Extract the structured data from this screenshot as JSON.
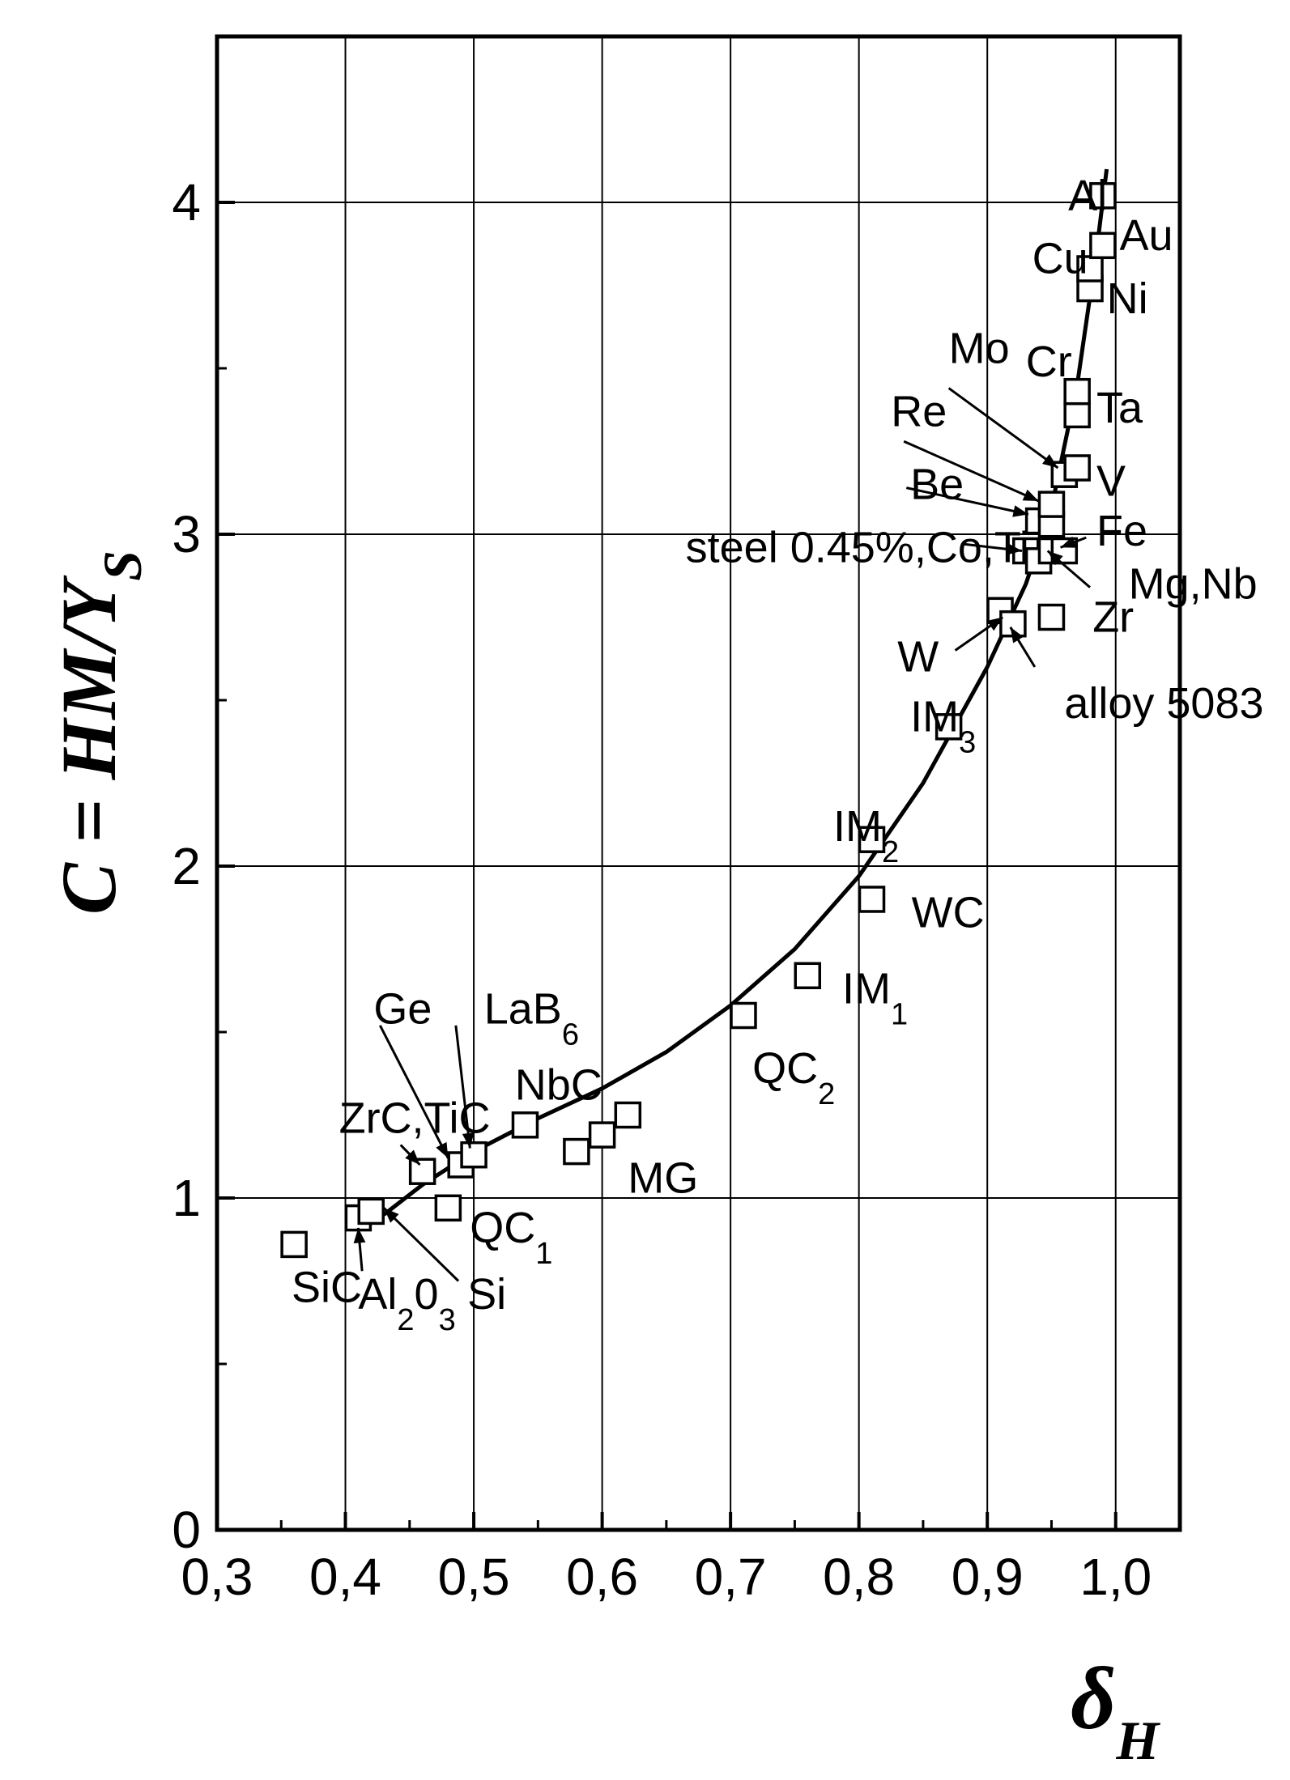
{
  "chart_data": {
    "type": "scatter",
    "title": "",
    "xlabel": {
      "main": "δ",
      "sub": "H"
    },
    "ylabel": {
      "main": "C = HM/Y",
      "sub": "S"
    },
    "xlim": [
      0.3,
      1.05
    ],
    "ylim": [
      0,
      4.5
    ],
    "grid": true,
    "xticks": [
      {
        "v": 0.3,
        "t": "0,3"
      },
      {
        "v": 0.4,
        "t": "0,4"
      },
      {
        "v": 0.5,
        "t": "0,5"
      },
      {
        "v": 0.6,
        "t": "0,6"
      },
      {
        "v": 0.7,
        "t": "0,7"
      },
      {
        "v": 0.8,
        "t": "0,8"
      },
      {
        "v": 0.9,
        "t": "0,9"
      },
      {
        "v": 1.0,
        "t": "1,0"
      }
    ],
    "yticks": [
      {
        "v": 0,
        "t": "0"
      },
      {
        "v": 1,
        "t": "1"
      },
      {
        "v": 2,
        "t": "2"
      },
      {
        "v": 3,
        "t": "3"
      },
      {
        "v": 4,
        "t": "4"
      }
    ],
    "points": [
      [
        0.36,
        0.86
      ],
      [
        0.41,
        0.94
      ],
      [
        0.42,
        0.96
      ],
      [
        0.46,
        1.08
      ],
      [
        0.48,
        0.97
      ],
      [
        0.49,
        1.1
      ],
      [
        0.5,
        1.13
      ],
      [
        0.54,
        1.22
      ],
      [
        0.58,
        1.14
      ],
      [
        0.6,
        1.19
      ],
      [
        0.62,
        1.25
      ],
      [
        0.71,
        1.55
      ],
      [
        0.76,
        1.67
      ],
      [
        0.81,
        1.9
      ],
      [
        0.81,
        2.08
      ],
      [
        0.87,
        2.42
      ],
      [
        0.91,
        2.77
      ],
      [
        0.92,
        2.73
      ],
      [
        0.95,
        2.75
      ],
      [
        0.93,
        2.95
      ],
      [
        0.94,
        2.92
      ],
      [
        0.95,
        2.95
      ],
      [
        0.96,
        2.95
      ],
      [
        0.94,
        3.04
      ],
      [
        0.95,
        3.03
      ],
      [
        0.95,
        3.09
      ],
      [
        0.96,
        3.18
      ],
      [
        0.97,
        3.2
      ],
      [
        0.97,
        3.36
      ],
      [
        0.97,
        3.43
      ],
      [
        0.98,
        3.74
      ],
      [
        0.98,
        3.8
      ],
      [
        0.99,
        3.87
      ],
      [
        0.99,
        4.02
      ]
    ],
    "fit_curve": [
      [
        0.43,
        0.95
      ],
      [
        0.46,
        1.04
      ],
      [
        0.5,
        1.14
      ],
      [
        0.55,
        1.24
      ],
      [
        0.6,
        1.33
      ],
      [
        0.65,
        1.44
      ],
      [
        0.7,
        1.58
      ],
      [
        0.75,
        1.75
      ],
      [
        0.8,
        1.97
      ],
      [
        0.85,
        2.25
      ],
      [
        0.9,
        2.6
      ],
      [
        0.93,
        2.85
      ],
      [
        0.95,
        3.08
      ],
      [
        0.97,
        3.45
      ],
      [
        0.985,
        3.85
      ],
      [
        0.993,
        4.1
      ]
    ],
    "annotations": [
      {
        "text": "Al",
        "x": 0.963,
        "y": 4.02
      },
      {
        "text": "Au",
        "x": 1.003,
        "y": 3.9
      },
      {
        "text": "Cu",
        "x": 0.935,
        "y": 3.83
      },
      {
        "text": "Ni",
        "x": 0.993,
        "y": 3.71
      },
      {
        "text": "Mo",
        "x": 0.87,
        "y": 3.56
      },
      {
        "text": "Cr",
        "x": 0.93,
        "y": 3.52
      },
      {
        "text": "Ta",
        "x": 0.985,
        "y": 3.38
      },
      {
        "text": "Re",
        "x": 0.825,
        "y": 3.37
      },
      {
        "text": "V",
        "x": 0.985,
        "y": 3.16
      },
      {
        "text": "Be",
        "x": 0.84,
        "y": 3.15
      },
      {
        "text": "Fe",
        "x": 0.985,
        "y": 3.01
      },
      {
        "text": "steel 0.45%,Co,Ti",
        "x": 0.665,
        "y": 2.96
      },
      {
        "text": "Mg,Nb",
        "x": 1.01,
        "y": 2.85
      },
      {
        "text": "Zr",
        "x": 0.982,
        "y": 2.75
      },
      {
        "text": "W",
        "x": 0.83,
        "y": 2.63
      },
      {
        "text": "alloy 5083",
        "x": 0.96,
        "y": 2.49
      },
      {
        "text": "IM",
        "sub": "3",
        "x": 0.84,
        "y": 2.45
      },
      {
        "text": "IM",
        "sub": "2",
        "x": 0.78,
        "y": 2.12
      },
      {
        "text": "WC",
        "x": 0.841,
        "y": 1.86
      },
      {
        "text": "IM",
        "sub": "1",
        "x": 0.787,
        "y": 1.63
      },
      {
        "text": "QC",
        "sub": "2",
        "x": 0.717,
        "y": 1.39
      },
      {
        "text": "Ge",
        "x": 0.422,
        "y": 1.57
      },
      {
        "text": "LaB",
        "sub": "6",
        "x": 0.508,
        "y": 1.57
      },
      {
        "text": "NbC",
        "x": 0.532,
        "y": 1.34
      },
      {
        "text": "ZrC,TiC",
        "x": 0.395,
        "y": 1.24
      },
      {
        "text": "MG",
        "x": 0.62,
        "y": 1.06
      },
      {
        "text": "QC",
        "sub": "1",
        "x": 0.497,
        "y": 0.91
      },
      {
        "text": "SiC",
        "x": 0.358,
        "y": 0.73
      },
      {
        "text": "Al",
        "sub": "2",
        "extra": "0",
        "extraSub": "3",
        "x": 0.41,
        "y": 0.71
      },
      {
        "text": "Si",
        "x": 0.495,
        "y": 0.71
      }
    ],
    "arrows": [
      [
        0.87,
        3.44,
        0.955,
        3.2
      ],
      [
        0.835,
        3.28,
        0.94,
        3.1
      ],
      [
        0.837,
        3.14,
        0.932,
        3.06
      ],
      [
        0.882,
        2.97,
        0.927,
        2.95
      ],
      [
        0.98,
        2.84,
        0.947,
        2.95
      ],
      [
        0.977,
        2.99,
        0.957,
        2.96
      ],
      [
        0.875,
        2.65,
        0.912,
        2.75
      ],
      [
        0.937,
        2.6,
        0.918,
        2.72
      ],
      [
        0.427,
        1.52,
        0.48,
        1.12
      ],
      [
        0.486,
        1.52,
        0.497,
        1.15
      ],
      [
        0.443,
        1.16,
        0.458,
        1.1
      ],
      [
        0.413,
        0.78,
        0.41,
        0.91
      ],
      [
        0.488,
        0.75,
        0.43,
        0.97
      ]
    ]
  }
}
